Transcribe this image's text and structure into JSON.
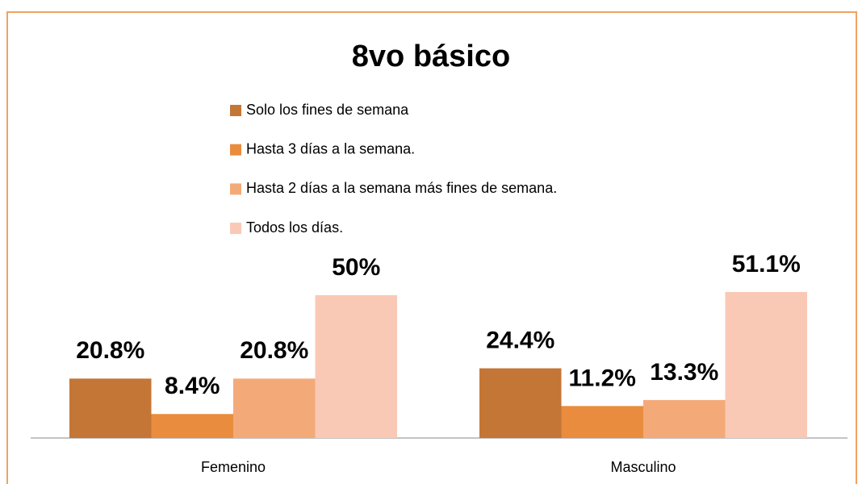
{
  "chart_data": {
    "type": "bar",
    "title": "8vo básico",
    "categories": [
      "Femenino",
      "Masculino"
    ],
    "series": [
      {
        "name": "Solo los fines de semana",
        "color": "#c47636",
        "values": [
          20.8,
          24.4
        ],
        "value_labels": [
          "20.8%",
          "24.4%"
        ]
      },
      {
        "name": "Hasta 3 días a la semana.",
        "color": "#e98c3e",
        "values": [
          8.4,
          11.2
        ],
        "value_labels": [
          "8.4%",
          "11.2%"
        ]
      },
      {
        "name": "Hasta 2 días a la semana más fines de semana.",
        "color": "#f4aa78",
        "values": [
          20.8,
          13.3
        ],
        "value_labels": [
          "20.8%",
          "13.3%"
        ]
      },
      {
        "name": "Todos los días.",
        "color": "#f9c9b5",
        "values": [
          50,
          51.1
        ],
        "value_labels": [
          "50%",
          "51.1%"
        ]
      }
    ],
    "legend": "top"
  }
}
